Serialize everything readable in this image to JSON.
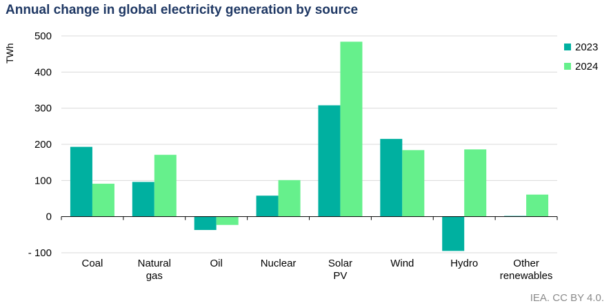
{
  "chart_data": {
    "type": "bar",
    "title": "Annual change in global electricity generation by source",
    "ylabel": "TWh",
    "xlabel": "",
    "ylim": [
      -100,
      500
    ],
    "yticks": [
      500,
      400,
      300,
      200,
      100,
      0,
      -100
    ],
    "ytick_labels": [
      "500",
      "400",
      "300",
      "200",
      "100",
      "0",
      "- 100"
    ],
    "categories": [
      [
        "Coal"
      ],
      [
        "Natural",
        "gas"
      ],
      [
        "Oil"
      ],
      [
        "Nuclear"
      ],
      [
        "Solar",
        "PV"
      ],
      [
        "Wind"
      ],
      [
        "Hydro"
      ],
      [
        "Other",
        "renewables"
      ]
    ],
    "series": [
      {
        "name": "2023",
        "color": "#00b0a0",
        "values": [
          193,
          96,
          -37,
          58,
          308,
          215,
          -95,
          2
        ]
      },
      {
        "name": "2024",
        "color": "#66f08c",
        "values": [
          91,
          171,
          -23,
          101,
          484,
          184,
          186,
          61
        ]
      }
    ],
    "legend_position": "right",
    "grid": true
  },
  "source": "IEA. CC BY 4.0."
}
